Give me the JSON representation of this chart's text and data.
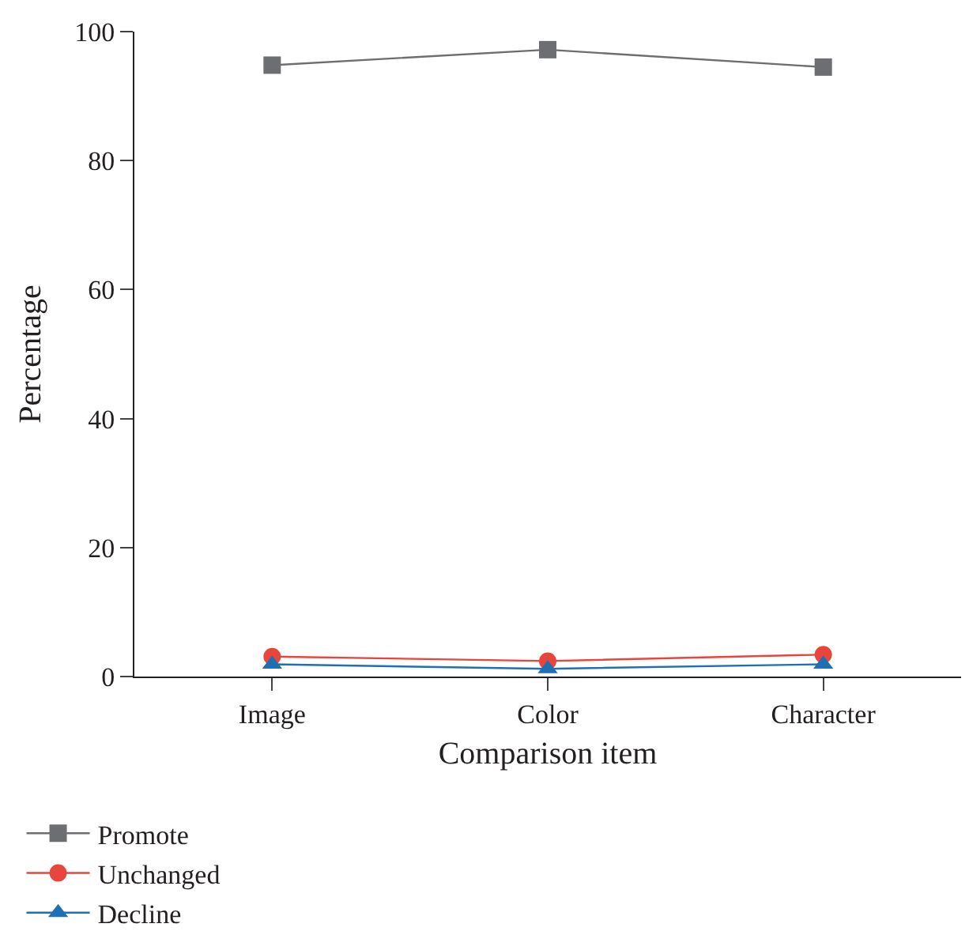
{
  "chart_data": {
    "type": "line",
    "xlabel": "Comparison item",
    "ylabel": "Percentage",
    "categories": [
      "Image",
      "Color",
      "Character"
    ],
    "series": [
      {
        "name": "Promote",
        "color": "#6d6e71",
        "marker": "square",
        "values": [
          94.8,
          97.2,
          94.5
        ]
      },
      {
        "name": "Unchanged",
        "color": "#e8453c",
        "marker": "circle",
        "values": [
          3.1,
          2.4,
          3.4
        ]
      },
      {
        "name": "Decline",
        "color": "#1f6fb5",
        "marker": "triangle",
        "values": [
          1.9,
          1.2,
          1.9
        ]
      }
    ],
    "ylim": [
      0,
      100
    ],
    "yticks": [
      0,
      20,
      40,
      60,
      80,
      100
    ],
    "legend": "bottom left",
    "line_style": "solid"
  }
}
